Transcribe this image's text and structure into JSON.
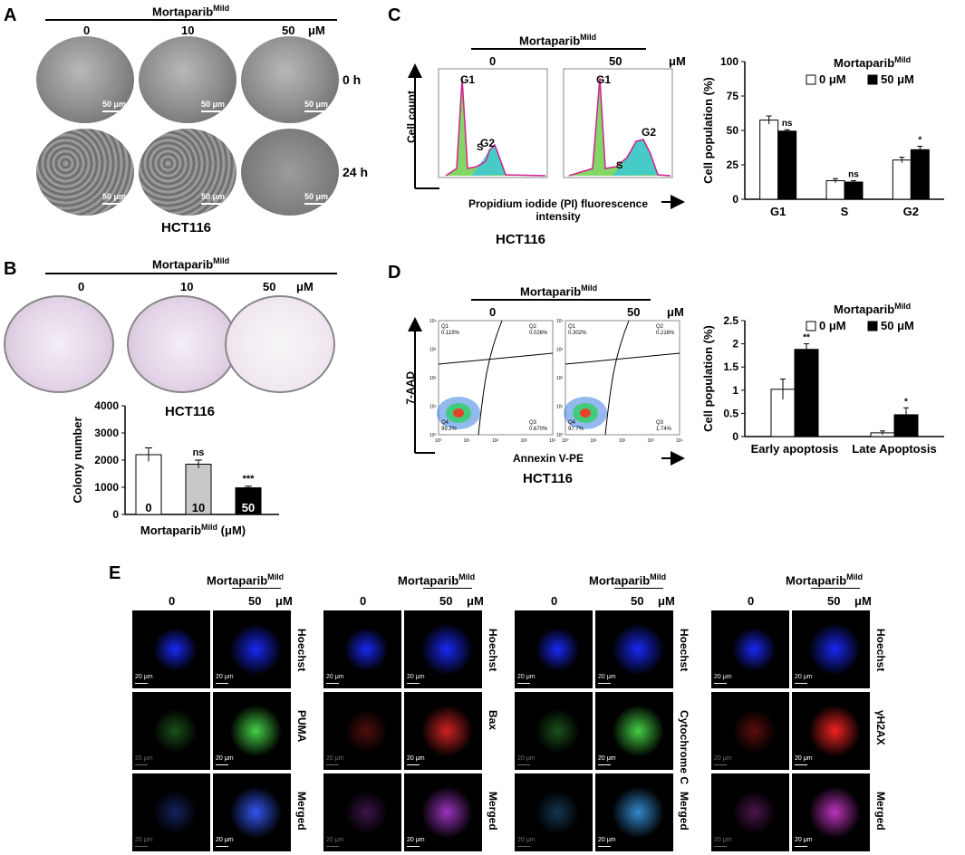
{
  "panel_labels": {
    "a": "A",
    "b": "B",
    "c": "C",
    "d": "D",
    "e": "E"
  },
  "drug": "Mortaparib",
  "drug_sup": "Mild",
  "cell_line": "HCT116",
  "unit": "μM",
  "panelA": {
    "doses": [
      "0",
      "10",
      "50"
    ],
    "times": [
      "0 h",
      "24 h"
    ],
    "scale_bar": "50 μm"
  },
  "panelB": {
    "doses": [
      "0",
      "10",
      "50"
    ],
    "chart_data": {
      "type": "bar",
      "categories": [
        "0",
        "10",
        "50"
      ],
      "values": [
        2200,
        1850,
        980
      ],
      "errors": [
        250,
        150,
        60
      ],
      "bar_colors": [
        "#ffffff",
        "#c8c8c8",
        "#000000"
      ],
      "ylabel": "Colony number",
      "xlabel_main": "Mortaparib",
      "xlabel_sup": "Mild",
      "xlabel_unit": "(μM)",
      "ylim": [
        0,
        4000
      ],
      "yticks": [
        "0",
        "1000",
        "2000",
        "3000",
        "4000"
      ],
      "annotations": [
        "",
        "ns",
        "***"
      ]
    }
  },
  "panelC": {
    "doses": [
      "0",
      "50"
    ],
    "hist": {
      "ylabel": "Cell count",
      "xlabel": "Propidium iodide (PI) fluorescence intensity",
      "peaks": [
        "G1",
        "S",
        "G2"
      ]
    },
    "chart_data": {
      "type": "bar",
      "categories": [
        "G1",
        "S",
        "G2"
      ],
      "series": [
        {
          "name": "0 μM",
          "values": [
            57.5,
            13.5,
            28.5
          ],
          "errors": [
            3,
            1.5,
            2
          ]
        },
        {
          "name": "50 μM",
          "values": [
            49.5,
            12.5,
            36
          ],
          "errors": [
            1,
            1,
            2.5
          ]
        }
      ],
      "ylabel": "Cell population (%)",
      "ylim": [
        0,
        100
      ],
      "yticks": [
        "0",
        "25",
        "50",
        "75",
        "100"
      ],
      "annotations": [
        "ns",
        "ns",
        "*"
      ],
      "legend_title": "Mortaparib",
      "legend_title_sup": "Mild",
      "colors": [
        "#ffffff",
        "#000000"
      ]
    }
  },
  "panelD": {
    "doses": [
      "0",
      "50"
    ],
    "flow": {
      "ylabel": "7-AAD",
      "xlabel": "Annexin V-PE",
      "plots": [
        {
          "q1": "Q1",
          "q1v": "0.119%",
          "q2": "Q2",
          "q2v": "0.026%",
          "q3": "Q3",
          "q3v": "0.670%",
          "q4": "Q4",
          "q4v": "99.2%"
        },
        {
          "q1": "Q1",
          "q1v": "0.302%",
          "q2": "Q2",
          "q2v": "0.216%",
          "q3": "Q3",
          "q3v": "1.74%",
          "q4": "Q4",
          "q4v": "97.7%"
        }
      ],
      "yticks": [
        "10⁰",
        "10¹",
        "10²",
        "10³",
        "10⁴"
      ],
      "xticks": [
        "10⁰",
        "10¹",
        "10²",
        "10³",
        "10⁴"
      ]
    },
    "chart_data": {
      "type": "bar",
      "categories": [
        "Early apoptosis",
        "Late Apoptosis"
      ],
      "series": [
        {
          "name": "0 μM",
          "values": [
            1.02,
            0.08
          ],
          "errors": [
            0.22,
            0.04
          ]
        },
        {
          "name": "50 μM",
          "values": [
            1.88,
            0.47
          ],
          "errors": [
            0.12,
            0.15
          ]
        }
      ],
      "ylabel": "Cell population (%)",
      "ylim": [
        0,
        2.5
      ],
      "yticks": [
        "0",
        "0.5",
        "1",
        "1.5",
        "2",
        "2.5"
      ],
      "annotations": [
        "**",
        "*"
      ],
      "legend_title": "Mortaparib",
      "legend_title_sup": "Mild",
      "colors": [
        "#ffffff",
        "#000000"
      ]
    }
  },
  "panelE": {
    "doses": [
      "0",
      "50"
    ],
    "scale_bar": "20 μm",
    "groups": [
      {
        "rows": [
          "Hoechst",
          "PUMA",
          "Merged"
        ]
      },
      {
        "rows": [
          "Hoechst",
          "Bax",
          "Merged"
        ]
      },
      {
        "rows": [
          "Hoechst",
          "Cytochrome C",
          "Merged"
        ]
      },
      {
        "rows": [
          "Hoechst",
          "γH2AX",
          "Merged"
        ]
      }
    ]
  }
}
